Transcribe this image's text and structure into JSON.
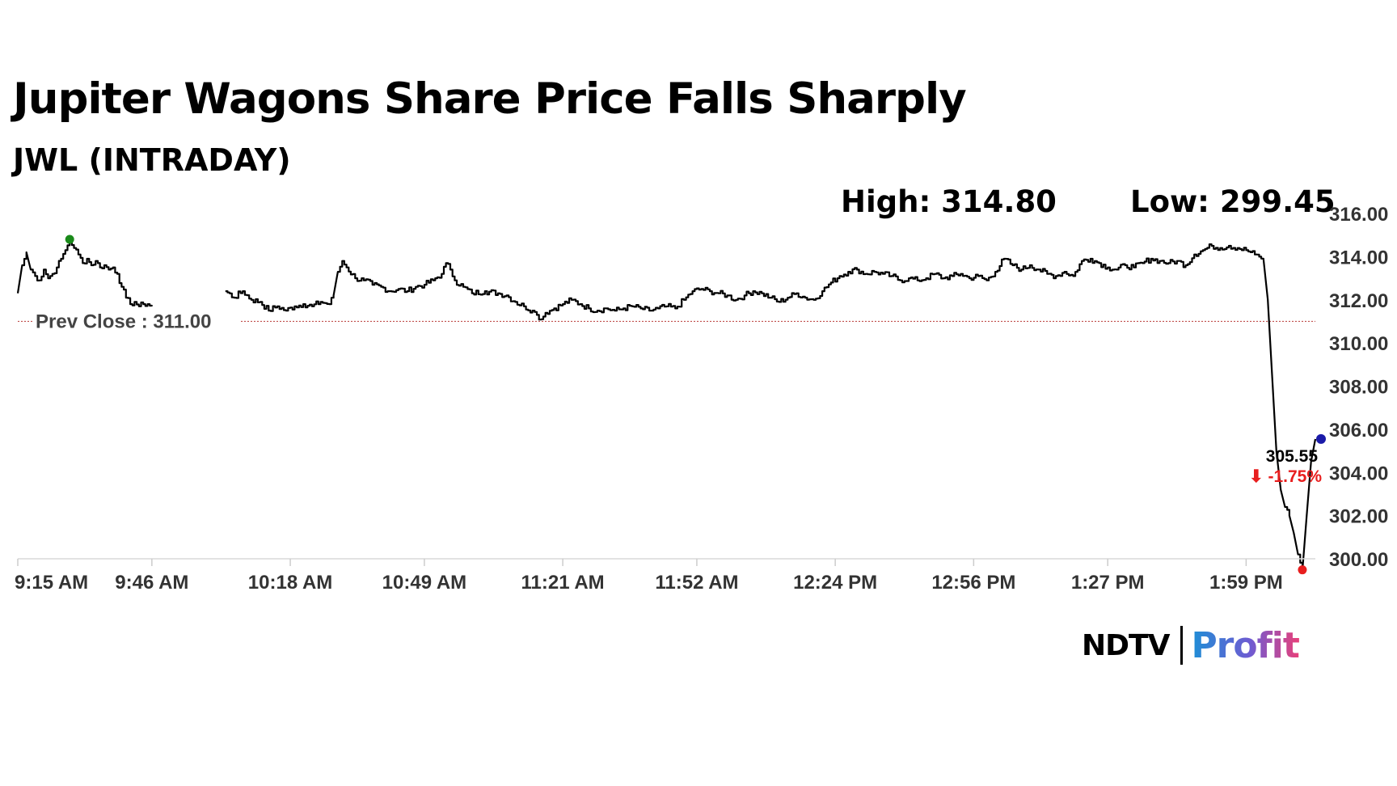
{
  "header": {
    "title": "Jupiter Wagons Share Price Falls Sharply",
    "subtitle": "JWL (INTRADAY)",
    "high_label": "High: 314.80",
    "low_label": "Low: 299.45"
  },
  "logo": {
    "ndtv": "NDTV",
    "profit": "Profit"
  },
  "colors": {
    "line": "#000000",
    "prev_close": "#c0504d",
    "high_marker": "#1a8a1a",
    "low_marker": "#e81e1e",
    "last_marker": "#1a1aa8",
    "change_negative": "#e81e1e",
    "axis_text": "#333333"
  },
  "chart_data": {
    "type": "line",
    "title": "Jupiter Wagons Share Price Falls Sharply",
    "subtitle": "JWL (INTRADAY)",
    "xlabel": "",
    "ylabel": "",
    "ylim": [
      300,
      316
    ],
    "y_ticks": [
      "300.00",
      "302.00",
      "304.00",
      "306.00",
      "308.00",
      "310.00",
      "312.00",
      "314.00",
      "316.00"
    ],
    "x_ticks": [
      "9:15 AM",
      "9:46 AM",
      "10:18 AM",
      "10:49 AM",
      "11:21 AM",
      "11:52 AM",
      "12:24 PM",
      "12:56 PM",
      "1:27 PM",
      "1:59 PM"
    ],
    "x_tick_minutes": [
      0,
      31,
      63,
      94,
      126,
      157,
      189,
      221,
      252,
      284
    ],
    "xlim_minutes": [
      0,
      300
    ],
    "grid": false,
    "prev_close": {
      "label": "Prev Close : 311.00",
      "value": 311.0
    },
    "high": {
      "minute": 12,
      "value": 314.8
    },
    "low": {
      "minute": 297,
      "value": 299.45
    },
    "last": {
      "minute": 300,
      "value": 305.55,
      "label": "305.55",
      "change": "⬇ -1.75%"
    },
    "series": [
      {
        "segments": [
          [
            [
              0,
              312.3
            ],
            [
              1,
              313.6
            ],
            [
              2,
              314.2
            ],
            [
              3,
              313.4
            ],
            [
              4,
              313.1
            ],
            [
              5,
              312.9
            ],
            [
              6,
              313.4
            ],
            [
              7,
              313.0
            ],
            [
              8,
              313.2
            ],
            [
              9,
              313.5
            ],
            [
              10,
              313.9
            ],
            [
              11,
              314.3
            ],
            [
              12,
              314.8
            ],
            [
              13,
              314.4
            ],
            [
              14,
              314.1
            ],
            [
              15,
              313.7
            ],
            [
              16,
              313.9
            ],
            [
              17,
              313.6
            ],
            [
              18,
              313.8
            ],
            [
              19,
              313.5
            ],
            [
              20,
              313.6
            ],
            [
              21,
              313.4
            ],
            [
              22,
              313.5
            ],
            [
              23,
              313.2
            ],
            [
              24,
              312.6
            ],
            [
              25,
              312.1
            ],
            [
              26,
              311.8
            ],
            [
              27,
              311.9
            ],
            [
              28,
              311.7
            ],
            [
              29,
              311.8
            ],
            [
              30,
              311.8
            ],
            [
              31,
              311.7
            ]
          ],
          [
            [
              48,
              312.4
            ],
            [
              50,
              312.1
            ],
            [
              52,
              312.4
            ],
            [
              54,
              312.0
            ],
            [
              56,
              311.9
            ],
            [
              58,
              311.5
            ],
            [
              60,
              311.7
            ],
            [
              62,
              311.5
            ],
            [
              64,
              311.7
            ],
            [
              66,
              311.8
            ],
            [
              68,
              311.7
            ],
            [
              70,
              311.9
            ],
            [
              72,
              311.8
            ],
            [
              73,
              312.2
            ],
            [
              74,
              313.3
            ],
            [
              75,
              313.8
            ],
            [
              76,
              313.5
            ],
            [
              78,
              313.0
            ],
            [
              80,
              312.9
            ],
            [
              82,
              312.7
            ],
            [
              84,
              312.6
            ],
            [
              86,
              312.4
            ],
            [
              88,
              312.5
            ],
            [
              90,
              312.4
            ],
            [
              92,
              312.6
            ],
            [
              94,
              312.7
            ],
            [
              96,
              312.9
            ],
            [
              98,
              313.2
            ],
            [
              99,
              313.7
            ],
            [
              100,
              313.4
            ],
            [
              101,
              312.9
            ],
            [
              103,
              312.6
            ],
            [
              105,
              312.3
            ],
            [
              108,
              312.4
            ],
            [
              111,
              312.3
            ],
            [
              113,
              312.2
            ],
            [
              115,
              311.9
            ],
            [
              117,
              311.7
            ],
            [
              119,
              311.5
            ],
            [
              120,
              311.3
            ],
            [
              121,
              311.1
            ],
            [
              122,
              311.4
            ],
            [
              124,
              311.6
            ],
            [
              126,
              311.8
            ],
            [
              128,
              312.0
            ],
            [
              130,
              311.8
            ],
            [
              132,
              311.6
            ],
            [
              134,
              311.5
            ],
            [
              136,
              311.6
            ],
            [
              138,
              311.5
            ],
            [
              140,
              311.6
            ],
            [
              142,
              311.7
            ],
            [
              144,
              311.6
            ],
            [
              146,
              311.5
            ],
            [
              148,
              311.6
            ],
            [
              150,
              311.7
            ],
            [
              152,
              311.6
            ],
            [
              154,
              312.0
            ],
            [
              156,
              312.4
            ],
            [
              158,
              312.5
            ],
            [
              160,
              312.4
            ],
            [
              162,
              312.3
            ],
            [
              164,
              312.2
            ],
            [
              166,
              312.0
            ],
            [
              168,
              312.2
            ],
            [
              170,
              312.4
            ],
            [
              172,
              312.3
            ],
            [
              174,
              312.1
            ],
            [
              176,
              311.9
            ],
            [
              178,
              312.1
            ],
            [
              180,
              312.3
            ],
            [
              182,
              312.1
            ],
            [
              184,
              312.0
            ],
            [
              186,
              312.4
            ],
            [
              188,
              312.8
            ],
            [
              190,
              313.1
            ],
            [
              192,
              313.3
            ],
            [
              194,
              313.4
            ],
            [
              196,
              313.2
            ],
            [
              198,
              313.3
            ],
            [
              200,
              313.2
            ],
            [
              202,
              313.1
            ],
            [
              204,
              312.9
            ],
            [
              206,
              313.0
            ],
            [
              208,
              312.9
            ],
            [
              210,
              313.0
            ],
            [
              212,
              313.2
            ],
            [
              214,
              313.0
            ],
            [
              216,
              313.1
            ],
            [
              218,
              313.2
            ],
            [
              220,
              313.0
            ],
            [
              222,
              313.1
            ],
            [
              224,
              312.9
            ],
            [
              226,
              313.3
            ],
            [
              228,
              313.9
            ],
            [
              230,
              313.6
            ],
            [
              232,
              313.4
            ],
            [
              234,
              313.6
            ],
            [
              236,
              313.4
            ],
            [
              238,
              313.2
            ],
            [
              240,
              313.1
            ],
            [
              242,
              313.3
            ],
            [
              244,
              313.1
            ],
            [
              246,
              313.8
            ],
            [
              248,
              313.9
            ],
            [
              250,
              313.7
            ],
            [
              252,
              313.5
            ],
            [
              254,
              313.4
            ],
            [
              256,
              313.6
            ],
            [
              258,
              313.5
            ],
            [
              260,
              313.7
            ],
            [
              262,
              313.9
            ],
            [
              264,
              313.8
            ],
            [
              266,
              313.7
            ],
            [
              268,
              313.8
            ],
            [
              270,
              313.6
            ],
            [
              272,
              314.1
            ],
            [
              274,
              314.3
            ],
            [
              276,
              314.5
            ],
            [
              278,
              314.4
            ],
            [
              280,
              314.5
            ],
            [
              282,
              314.4
            ],
            [
              284,
              314.3
            ],
            [
              286,
              314.1
            ],
            [
              287,
              314.0
            ],
            [
              288,
              313.9
            ],
            [
              289,
              312.0
            ],
            [
              290,
              308.5
            ],
            [
              291,
              305.0
            ],
            [
              292,
              303.2
            ],
            [
              293,
              302.4
            ],
            [
              294,
              302.0
            ],
            [
              295,
              301.2
            ],
            [
              296,
              300.2
            ],
            [
              297,
              299.45
            ],
            [
              298,
              302.0
            ],
            [
              299,
              304.5
            ],
            [
              300,
              305.55
            ]
          ]
        ]
      }
    ]
  }
}
